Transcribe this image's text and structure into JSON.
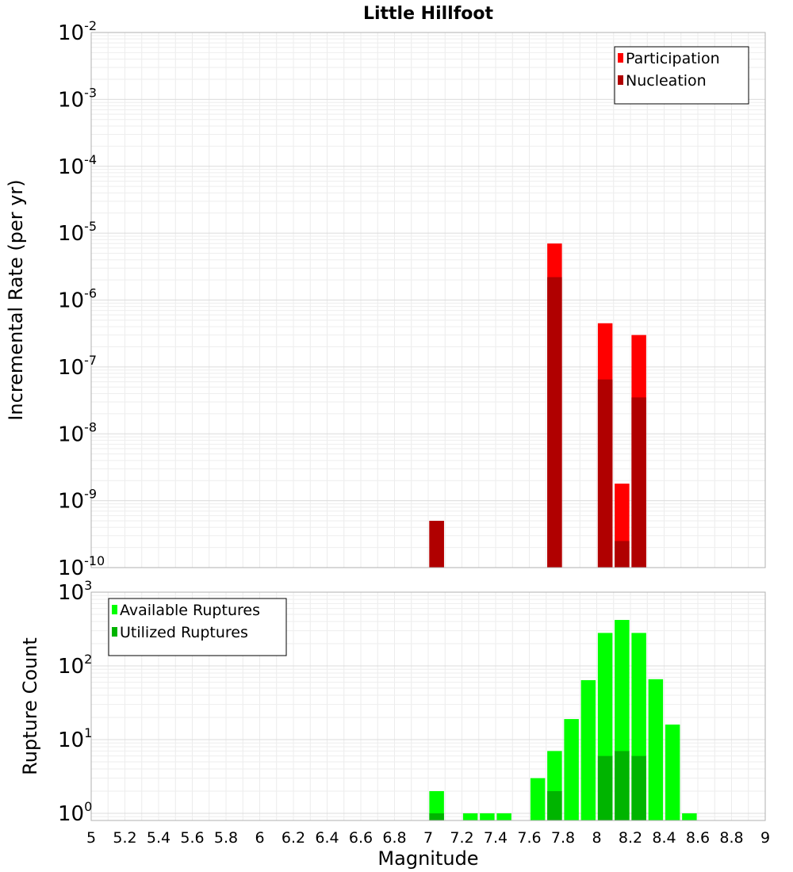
{
  "chart_data": [
    {
      "type": "bar",
      "title": "Little Hillfoot",
      "xlabel": "",
      "ylabel": "Incremental Rate (per yr)",
      "yscale": "log",
      "ylim": [
        1e-10,
        0.01
      ],
      "xlim": [
        5,
        9
      ],
      "grid": true,
      "legend_position": "top-right",
      "y_tick_exponents": [
        "-10",
        "-9",
        "-8",
        "-7",
        "-6",
        "-5",
        "-4",
        "-3",
        "-2"
      ],
      "overlay": true,
      "series": [
        {
          "name": "Participation",
          "color": "#ff0000",
          "points": [
            {
              "x": 7.05,
              "y": 5e-10
            },
            {
              "x": 7.75,
              "y": 7e-06
            },
            {
              "x": 8.05,
              "y": 4.5e-07
            },
            {
              "x": 8.15,
              "y": 1.8e-09
            },
            {
              "x": 8.25,
              "y": 3e-07
            }
          ]
        },
        {
          "name": "Nucleation",
          "color": "#b00000",
          "points": [
            {
              "x": 7.05,
              "y": 5e-10
            },
            {
              "x": 7.75,
              "y": 2.2e-06
            },
            {
              "x": 8.05,
              "y": 6.5e-08
            },
            {
              "x": 8.15,
              "y": 2.5e-10
            },
            {
              "x": 8.25,
              "y": 3.5e-08
            }
          ]
        }
      ]
    },
    {
      "type": "bar",
      "title": "",
      "xlabel": "Magnitude",
      "ylabel": "Rupture Count",
      "yscale": "log",
      "ylim": [
        0.8,
        1000
      ],
      "xlim": [
        5,
        9
      ],
      "grid": true,
      "legend_position": "top-left",
      "y_tick_exponents": [
        "0",
        "1",
        "2",
        "3"
      ],
      "x_ticks": [
        "5",
        "5.2",
        "5.4",
        "5.6",
        "5.8",
        "6",
        "6.2",
        "6.4",
        "6.6",
        "6.8",
        "7",
        "7.2",
        "7.4",
        "7.6",
        "7.8",
        "8",
        "8.2",
        "8.4",
        "8.6",
        "8.8",
        "9"
      ],
      "overlay": true,
      "series": [
        {
          "name": "Available Ruptures",
          "color": "#00ff00",
          "points": [
            {
              "x": 7.05,
              "y": 2
            },
            {
              "x": 7.25,
              "y": 1
            },
            {
              "x": 7.35,
              "y": 1
            },
            {
              "x": 7.45,
              "y": 1
            },
            {
              "x": 7.65,
              "y": 3
            },
            {
              "x": 7.75,
              "y": 7
            },
            {
              "x": 7.85,
              "y": 19
            },
            {
              "x": 7.95,
              "y": 64
            },
            {
              "x": 8.05,
              "y": 280
            },
            {
              "x": 8.15,
              "y": 420
            },
            {
              "x": 8.25,
              "y": 280
            },
            {
              "x": 8.35,
              "y": 66
            },
            {
              "x": 8.45,
              "y": 16
            },
            {
              "x": 8.55,
              "y": 1
            }
          ]
        },
        {
          "name": "Utilized Ruptures",
          "color": "#00b400",
          "points": [
            {
              "x": 7.05,
              "y": 1
            },
            {
              "x": 7.75,
              "y": 2
            },
            {
              "x": 8.05,
              "y": 6
            },
            {
              "x": 8.15,
              "y": 7
            },
            {
              "x": 8.25,
              "y": 6
            }
          ]
        }
      ]
    }
  ]
}
